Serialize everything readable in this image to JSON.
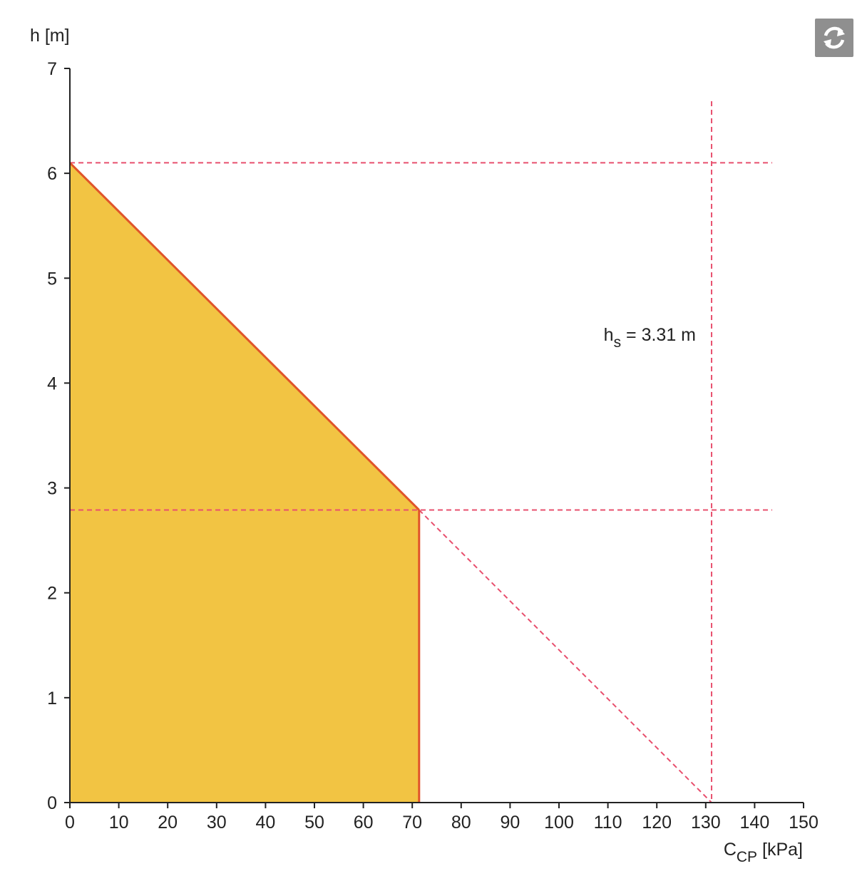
{
  "refresh_icon": "refresh-icon",
  "colors": {
    "fill": "#f2c443",
    "line": "#e0542a",
    "dashed": "#e8506e",
    "axis": "#222222"
  },
  "chart_data": {
    "type": "area",
    "title": "",
    "xlabel": {
      "main": "C",
      "sub": "CP",
      "unit": " [kPa]"
    },
    "ylabel": "h [m]",
    "xlim": [
      0,
      150
    ],
    "ylim": [
      0,
      7
    ],
    "x_ticks": [
      0,
      10,
      20,
      30,
      40,
      50,
      60,
      70,
      80,
      90,
      100,
      110,
      120,
      130,
      140,
      150
    ],
    "y_ticks": [
      0,
      1,
      2,
      3,
      4,
      5,
      6,
      7
    ],
    "grid": false,
    "filled_region": {
      "polygon": [
        [
          0,
          0
        ],
        [
          0,
          6.1
        ],
        [
          71.4,
          2.79
        ],
        [
          71.4,
          0
        ]
      ]
    },
    "pressure_line": {
      "x": [
        0,
        71.4
      ],
      "y": [
        6.1,
        2.79
      ]
    },
    "pressure_line_extension": {
      "x": [
        71.4,
        131.2
      ],
      "y": [
        2.79,
        0
      ]
    },
    "reference_lines": {
      "horizontal": [
        6.1,
        2.79
      ],
      "vertical": [
        131.2
      ]
    },
    "annotation": {
      "main": "h",
      "sub": "s",
      "rest": " = 3.31 m",
      "x": 131.2,
      "y": 4.5
    }
  }
}
